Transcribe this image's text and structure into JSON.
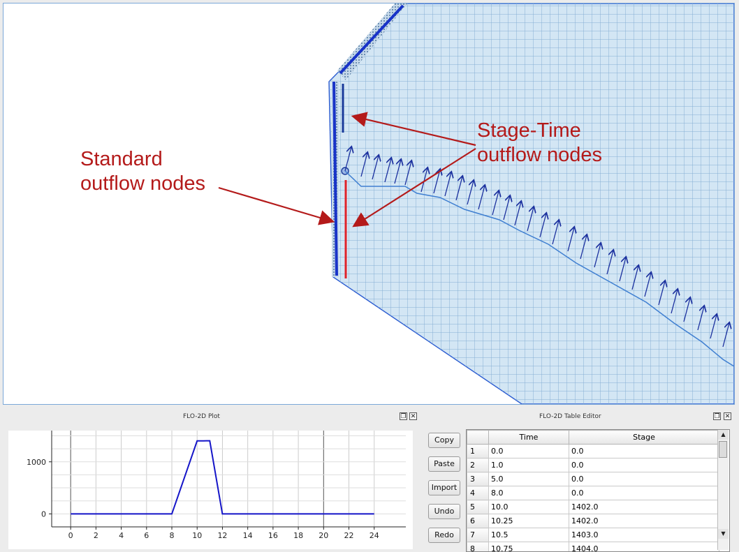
{
  "map": {
    "annotations": {
      "stage_time": "Stage-Time\noutflow nodes",
      "standard": "Standard\noutflow nodes"
    },
    "colors": {
      "annotation": "#b41a1a",
      "grid_fill": "#d3e6f4",
      "grid_line": "#7fa9cf",
      "boundary": "#2a5bd1",
      "outflow_line": "#1833c8",
      "stage_line": "#e0222a"
    }
  },
  "plot_dock": {
    "title": "FLO-2D Plot",
    "restore_icon": "restore-icon",
    "close_icon": "close-icon"
  },
  "table_dock": {
    "title": "FLO-2D Table Editor",
    "restore_icon": "restore-icon",
    "close_icon": "close-icon"
  },
  "chart_data": {
    "type": "line",
    "title": "",
    "xlabel": "",
    "ylabel": "",
    "x_ticks": [
      "0",
      "2",
      "4",
      "6",
      "8",
      "10",
      "12",
      "14",
      "16",
      "18",
      "20",
      "22",
      "24"
    ],
    "y_ticks": [
      "0",
      "1000"
    ],
    "xlim": [
      -1.5,
      26.5
    ],
    "ylim": [
      -250,
      1600
    ],
    "grid": true,
    "series": [
      {
        "x": [
          0,
          1,
          5,
          8,
          10,
          10.25,
          10.5,
          10.75,
          11,
          12,
          24
        ],
        "y": [
          0,
          0,
          0,
          0,
          1402,
          1402,
          1403,
          1404,
          1404,
          0,
          0
        ],
        "color": "#1515c8"
      }
    ]
  },
  "toolbar": {
    "copy": "Copy",
    "paste": "Paste",
    "import": "Import",
    "undo": "Undo",
    "redo": "Redo"
  },
  "table": {
    "headers": [
      "Time",
      "Stage"
    ],
    "rows": [
      {
        "n": "1",
        "time": "0.0",
        "stage": "0.0"
      },
      {
        "n": "2",
        "time": "1.0",
        "stage": "0.0"
      },
      {
        "n": "3",
        "time": "5.0",
        "stage": "0.0"
      },
      {
        "n": "4",
        "time": "8.0",
        "stage": "0.0"
      },
      {
        "n": "5",
        "time": "10.0",
        "stage": "1402.0"
      },
      {
        "n": "6",
        "time": "10.25",
        "stage": "1402.0"
      },
      {
        "n": "7",
        "time": "10.5",
        "stage": "1403.0"
      },
      {
        "n": "8",
        "time": "10.75",
        "stage": "1404.0"
      }
    ],
    "scroll_up": "▲",
    "scroll_down": "▼"
  }
}
